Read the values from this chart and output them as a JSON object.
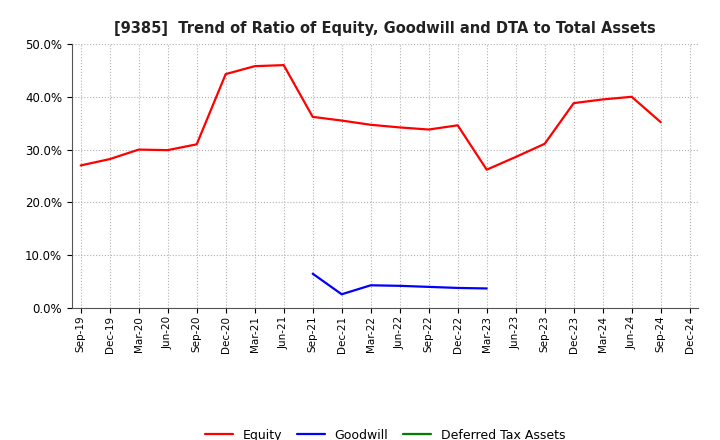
{
  "title": "[9385]  Trend of Ratio of Equity, Goodwill and DTA to Total Assets",
  "xlabels": [
    "Sep-19",
    "Dec-19",
    "Mar-20",
    "Jun-20",
    "Sep-20",
    "Dec-20",
    "Mar-21",
    "Jun-21",
    "Sep-21",
    "Dec-21",
    "Mar-22",
    "Jun-22",
    "Sep-22",
    "Dec-22",
    "Mar-23",
    "Jun-23",
    "Sep-23",
    "Dec-23",
    "Mar-24",
    "Jun-24",
    "Sep-24",
    "Dec-24"
  ],
  "equity": [
    0.27,
    0.282,
    0.3,
    0.299,
    0.31,
    0.443,
    0.458,
    0.46,
    0.362,
    0.355,
    0.347,
    0.342,
    0.338,
    0.346,
    0.262,
    0.286,
    0.311,
    0.388,
    0.395,
    0.4,
    0.352,
    null
  ],
  "goodwill": [
    null,
    null,
    null,
    null,
    null,
    null,
    null,
    null,
    0.065,
    0.026,
    0.043,
    0.042,
    0.04,
    0.038,
    0.037,
    null,
    null,
    null,
    null,
    null,
    null,
    null
  ],
  "dta": [
    null,
    null,
    null,
    null,
    null,
    null,
    null,
    null,
    null,
    null,
    null,
    null,
    null,
    null,
    null,
    null,
    null,
    null,
    null,
    null,
    null,
    null
  ],
  "equity_color": "#ff0000",
  "goodwill_color": "#0000ff",
  "dta_color": "#008000",
  "ylim": [
    0.0,
    0.5
  ],
  "yticks": [
    0.0,
    0.1,
    0.2,
    0.3,
    0.4,
    0.5
  ],
  "background_color": "#ffffff",
  "grid_color": "#b0b0b0"
}
